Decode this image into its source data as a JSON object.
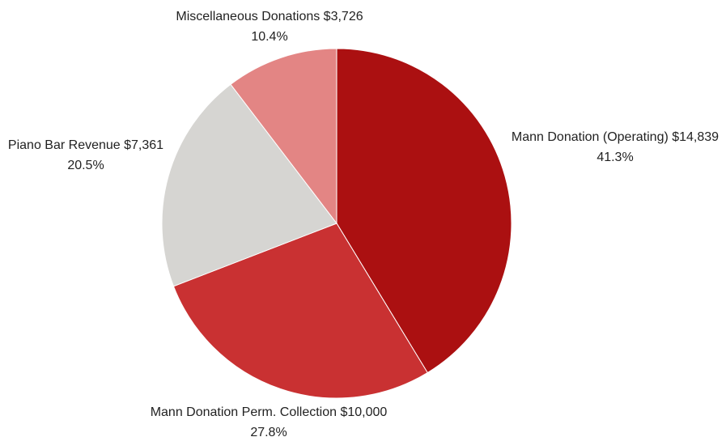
{
  "chart_data": {
    "type": "pie",
    "title": "",
    "start_angle_deg": 0,
    "direction": "clockwise",
    "slices": [
      {
        "label": "Mann Donation (Operating)",
        "value_text": "$14,839",
        "value": 14839,
        "percent_text": "41.3%",
        "percent": 41.3,
        "color": "#ab1011"
      },
      {
        "label": "Mann Donation Perm. Collection",
        "value_text": "$10,000",
        "value": 10000,
        "percent_text": "27.8%",
        "percent": 27.8,
        "color": "#c93132"
      },
      {
        "label": "Piano Bar Revenue",
        "value_text": "$7,361",
        "value": 7361,
        "percent_text": "20.5%",
        "percent": 20.5,
        "color": "#d6d5d2"
      },
      {
        "label": "Miscellaneous Donations",
        "value_text": "$3,726",
        "value": 3726,
        "percent_text": "10.4%",
        "percent": 10.4,
        "color": "#e38584"
      }
    ]
  }
}
